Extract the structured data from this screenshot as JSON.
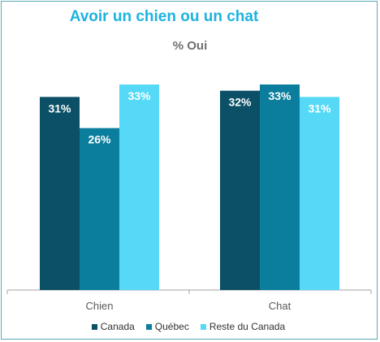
{
  "chart_data": {
    "type": "bar",
    "title": "Avoir un chien ou un chat",
    "subtitle": "% Oui",
    "categories": [
      "Chien",
      "Chat"
    ],
    "series": [
      {
        "name": "Canada",
        "values": [
          31,
          32
        ],
        "color": "#0b5066"
      },
      {
        "name": "Québec",
        "values": [
          26,
          33
        ],
        "color": "#0a7e9c"
      },
      {
        "name": "Reste du Canada",
        "values": [
          33,
          31
        ],
        "color": "#55d9f7"
      }
    ],
    "value_suffix": "%",
    "ylim": [
      0,
      33
    ],
    "grid": false,
    "legend_position": "bottom"
  }
}
